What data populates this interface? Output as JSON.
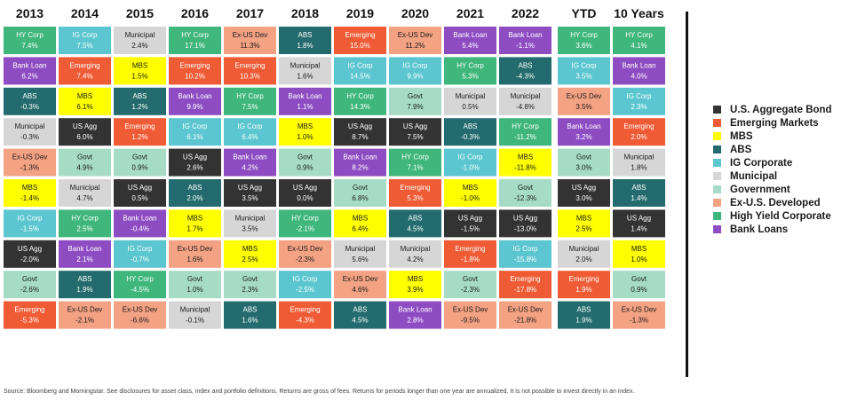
{
  "chart_data": {
    "type": "table",
    "title": "",
    "columns": [
      "2013",
      "2014",
      "2015",
      "2016",
      "2017",
      "2018",
      "2019",
      "2020",
      "2021",
      "2022",
      "YTD",
      "10 Years"
    ],
    "asset_colors": {
      "U.S. Aggregate Bond": "#333333",
      "Emerging Markets": "#ef5b35",
      "MBS": "#ffff00",
      "ABS": "#236b6e",
      "IG Corporate": "#5bc6d0",
      "Municipal": "#d6d6d6",
      "Government": "#a6dcc5",
      "Ex-U.S. Developed": "#f3a283",
      "High Yield Corporate": "#3fb67b",
      "Bank Loans": "#8e4cc2"
    },
    "cells": [
      [
        [
          "HY Corp",
          "7.4%",
          "High Yield Corporate"
        ],
        [
          "Bank Loan",
          "6.2%",
          "Bank Loans"
        ],
        [
          "ABS",
          "-0.3%",
          "ABS"
        ],
        [
          "Municipal",
          "-0.3%",
          "Municipal"
        ],
        [
          "Ex-US Dev",
          "-1.3%",
          "Ex-U.S. Developed"
        ],
        [
          "MBS",
          "-1.4%",
          "MBS"
        ],
        [
          "IG Corp",
          "-1.5%",
          "IG Corporate"
        ],
        [
          "US Agg",
          "-2.0%",
          "U.S. Aggregate Bond"
        ],
        [
          "Govt",
          "-2.6%",
          "Government"
        ],
        [
          "Emerging",
          "-5.3%",
          "Emerging Markets"
        ]
      ],
      [
        [
          "IG Corp",
          "7.5%",
          "IG Corporate"
        ],
        [
          "Emerging",
          "7.4%",
          "Emerging Markets"
        ],
        [
          "MBS",
          "6.1%",
          "MBS"
        ],
        [
          "US Agg",
          "6.0%",
          "U.S. Aggregate Bond"
        ],
        [
          "Govt",
          "4.9%",
          "Government"
        ],
        [
          "Municipal",
          "4.7%",
          "Municipal"
        ],
        [
          "HY Corp",
          "2.5%",
          "High Yield Corporate"
        ],
        [
          "Bank Loan",
          "2.1%",
          "Bank Loans"
        ],
        [
          "ABS",
          "1.9%",
          "ABS"
        ],
        [
          "Ex-US Dev",
          "-2.1%",
          "Ex-U.S. Developed"
        ]
      ],
      [
        [
          "Municipal",
          "2.4%",
          "Municipal"
        ],
        [
          "MBS",
          "1.5%",
          "MBS"
        ],
        [
          "ABS",
          "1.2%",
          "ABS"
        ],
        [
          "Emerging",
          "1.2%",
          "Emerging Markets"
        ],
        [
          "Govt",
          "0.9%",
          "Government"
        ],
        [
          "US Agg",
          "0.5%",
          "U.S. Aggregate Bond"
        ],
        [
          "Bank Loan",
          "-0.4%",
          "Bank Loans"
        ],
        [
          "IG Corp",
          "-0.7%",
          "IG Corporate"
        ],
        [
          "HY Corp",
          "-4.5%",
          "High Yield Corporate"
        ],
        [
          "Ex-US Dev",
          "-6.6%",
          "Ex-U.S. Developed"
        ]
      ],
      [
        [
          "HY Corp",
          "17.1%",
          "High Yield Corporate"
        ],
        [
          "Emerging",
          "10.2%",
          "Emerging Markets"
        ],
        [
          "Bank Loan",
          "9.9%",
          "Bank Loans"
        ],
        [
          "IG Corp",
          "6.1%",
          "IG Corporate"
        ],
        [
          "US Agg",
          "2.6%",
          "U.S. Aggregate Bond"
        ],
        [
          "ABS",
          "2.0%",
          "ABS"
        ],
        [
          "MBS",
          "1.7%",
          "MBS"
        ],
        [
          "Ex-US Dev",
          "1.6%",
          "Ex-U.S. Developed"
        ],
        [
          "Govt",
          "1.0%",
          "Government"
        ],
        [
          "Municipal",
          "-0.1%",
          "Municipal"
        ]
      ],
      [
        [
          "Ex-US Dev",
          "11.3%",
          "Ex-U.S. Developed"
        ],
        [
          "Emerging",
          "10.3%",
          "Emerging Markets"
        ],
        [
          "HY Corp",
          "7.5%",
          "High Yield Corporate"
        ],
        [
          "IG Corp",
          "6.4%",
          "IG Corporate"
        ],
        [
          "Bank Loan",
          "4.2%",
          "Bank Loans"
        ],
        [
          "US Agg",
          "3.5%",
          "U.S. Aggregate Bond"
        ],
        [
          "Municipal",
          "3.5%",
          "Municipal"
        ],
        [
          "MBS",
          "2.5%",
          "MBS"
        ],
        [
          "Govt",
          "2.3%",
          "Government"
        ],
        [
          "ABS",
          "1.6%",
          "ABS"
        ]
      ],
      [
        [
          "ABS",
          "1.8%",
          "ABS"
        ],
        [
          "Municipal",
          "1.6%",
          "Municipal"
        ],
        [
          "Bank Loan",
          "1.1%",
          "Bank Loans"
        ],
        [
          "MBS",
          "1.0%",
          "MBS"
        ],
        [
          "Govt",
          "0.9%",
          "Government"
        ],
        [
          "US Agg",
          "0.0%",
          "U.S. Aggregate Bond"
        ],
        [
          "HY Corp",
          "-2.1%",
          "High Yield Corporate"
        ],
        [
          "Ex-US Dev",
          "-2.3%",
          "Ex-U.S. Developed"
        ],
        [
          "IG Corp",
          "-2.5%",
          "IG Corporate"
        ],
        [
          "Emerging",
          "-4.3%",
          "Emerging Markets"
        ]
      ],
      [
        [
          "Emerging",
          "15.0%",
          "Emerging Markets"
        ],
        [
          "IG Corp",
          "14.5%",
          "IG Corporate"
        ],
        [
          "HY Corp",
          "14.3%",
          "High Yield Corporate"
        ],
        [
          "US Agg",
          "8.7%",
          "U.S. Aggregate Bond"
        ],
        [
          "Bank Loan",
          "8.2%",
          "Bank Loans"
        ],
        [
          "Govt",
          "6.8%",
          "Government"
        ],
        [
          "MBS",
          "6.4%",
          "MBS"
        ],
        [
          "Municipal",
          "5.6%",
          "Municipal"
        ],
        [
          "Ex-US Dev",
          "4.6%",
          "Ex-U.S. Developed"
        ],
        [
          "ABS",
          "4.5%",
          "ABS"
        ]
      ],
      [
        [
          "Ex-US Dev",
          "11.2%",
          "Ex-U.S. Developed"
        ],
        [
          "IG Corp",
          "9.9%",
          "IG Corporate"
        ],
        [
          "Govt",
          "7.9%",
          "Government"
        ],
        [
          "US Agg",
          "7.5%",
          "U.S. Aggregate Bond"
        ],
        [
          "HY Corp",
          "7.1%",
          "High Yield Corporate"
        ],
        [
          "Emerging",
          "5.3%",
          "Emerging Markets"
        ],
        [
          "ABS",
          "4.5%",
          "ABS"
        ],
        [
          "Municipal",
          "4.2%",
          "Municipal"
        ],
        [
          "MBS",
          "3.9%",
          "MBS"
        ],
        [
          "Bank Loan",
          "2.8%",
          "Bank Loans"
        ]
      ],
      [
        [
          "Bank Loan",
          "5.4%",
          "Bank Loans"
        ],
        [
          "HY Corp",
          "5.3%",
          "High Yield Corporate"
        ],
        [
          "Municipal",
          "0.5%",
          "Municipal"
        ],
        [
          "ABS",
          "-0.3%",
          "ABS"
        ],
        [
          "IG Corp",
          "-1.0%",
          "IG Corporate"
        ],
        [
          "MBS",
          "-1.0%",
          "MBS"
        ],
        [
          "US Agg",
          "-1.5%",
          "U.S. Aggregate Bond"
        ],
        [
          "Emerging",
          "-1.8%",
          "Emerging Markets"
        ],
        [
          "Govt",
          "-2.3%",
          "Government"
        ],
        [
          "Ex-US Dev",
          "-9.5%",
          "Ex-U.S. Developed"
        ]
      ],
      [
        [
          "Bank Loan",
          "-1.1%",
          "Bank Loans"
        ],
        [
          "ABS",
          "-4.3%",
          "ABS"
        ],
        [
          "Municipal",
          "-4.8%",
          "Municipal"
        ],
        [
          "HY Corp",
          "-11.2%",
          "High Yield Corporate"
        ],
        [
          "MBS",
          "-11.8%",
          "MBS"
        ],
        [
          "Govt",
          "-12.3%",
          "Government"
        ],
        [
          "US Agg",
          "-13.0%",
          "U.S. Aggregate Bond"
        ],
        [
          "IG Corp",
          "-15.8%",
          "IG Corporate"
        ],
        [
          "Emerging",
          "-17.8%",
          "Emerging Markets"
        ],
        [
          "Ex-US Dev",
          "-21.8%",
          "Ex-U.S. Developed"
        ]
      ],
      [
        [
          "HY Corp",
          "3.6%",
          "High Yield Corporate"
        ],
        [
          "IG Corp",
          "3.5%",
          "IG Corporate"
        ],
        [
          "Ex-US Dev",
          "3.5%",
          "Ex-U.S. Developed"
        ],
        [
          "Bank Loan",
          "3.2%",
          "Bank Loans"
        ],
        [
          "Govt",
          "3.0%",
          "Government"
        ],
        [
          "US Agg",
          "3.0%",
          "U.S. Aggregate Bond"
        ],
        [
          "MBS",
          "2.5%",
          "MBS"
        ],
        [
          "Municipal",
          "2.0%",
          "Municipal"
        ],
        [
          "Emerging",
          "1.9%",
          "Emerging Markets"
        ],
        [
          "ABS",
          "1.9%",
          "ABS"
        ]
      ],
      [
        [
          "HY Corp",
          "4.1%",
          "High Yield Corporate"
        ],
        [
          "Bank Loan",
          "4.0%",
          "Bank Loans"
        ],
        [
          "IG Corp",
          "2.3%",
          "IG Corporate"
        ],
        [
          "Emerging",
          "2.0%",
          "Emerging Markets"
        ],
        [
          "Municipal",
          "1.8%",
          "Municipal"
        ],
        [
          "ABS",
          "1.4%",
          "ABS"
        ],
        [
          "US Agg",
          "1.4%",
          "U.S. Aggregate Bond"
        ],
        [
          "MBS",
          "1.0%",
          "MBS"
        ],
        [
          "Govt",
          "0.9%",
          "Government"
        ],
        [
          "Ex-US Dev",
          "-1.3%",
          "Ex-U.S. Developed"
        ]
      ]
    ],
    "legend": {
      "position": "right",
      "entries": [
        "U.S. Aggregate Bond",
        "Emerging Markets",
        "MBS",
        "ABS",
        "IG Corporate",
        "Municipal",
        "Government",
        "Ex-U.S. Developed",
        "High Yield Corporate",
        "Bank Loans"
      ]
    }
  },
  "footnote": "Source: Bloomberg and Morningstar. See disclosures for asset class, index and portfolio definitions. Returns are gross of fees. Returns for periods longer than one year are annualized. It is not possible to invest directly in an index."
}
